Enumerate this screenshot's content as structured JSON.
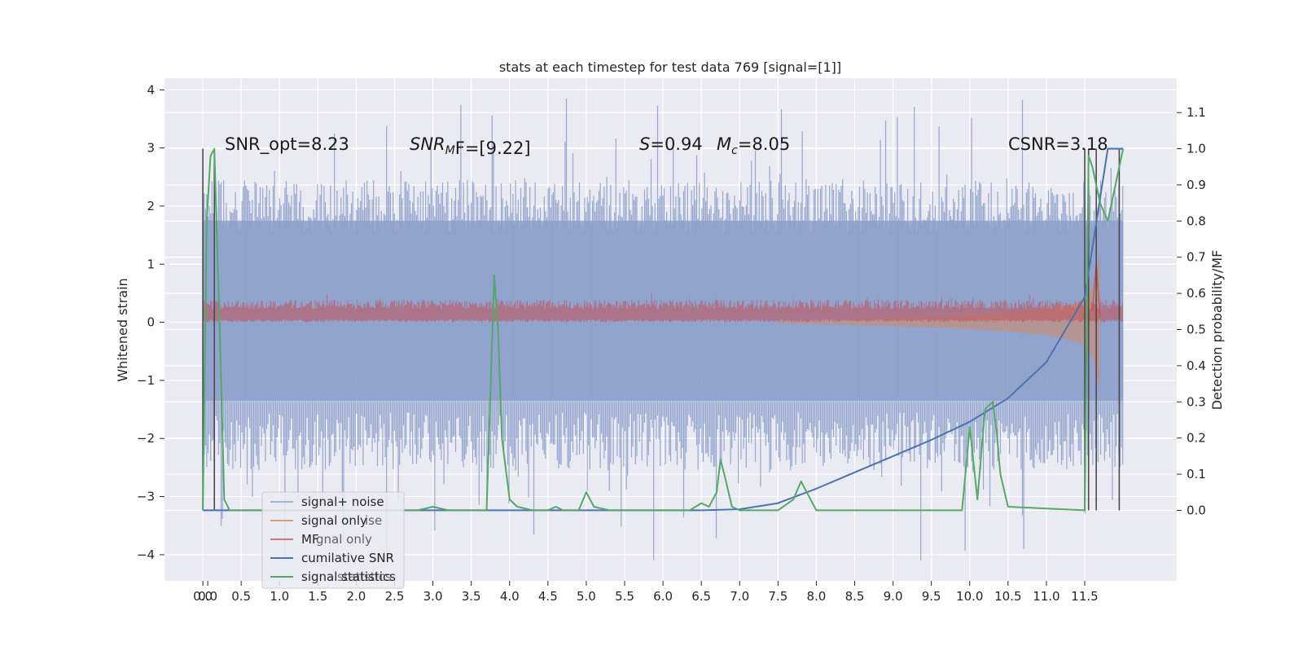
{
  "chart_data": {
    "type": "line",
    "title": "stats at each timestep for test data 769 [signal=[1]]",
    "xlabel": "",
    "ylabel_left": "Whitened strain",
    "ylabel_right": "Detection probability/MF",
    "xlim": [
      -0.5,
      12.7
    ],
    "ylim_left": [
      -4.45,
      4.2
    ],
    "ylim_right": [
      -0.195,
      1.195
    ],
    "x_ticks": [
      "0.0",
      "0.0",
      "0.5",
      "1.0",
      "1.5",
      "2.0",
      "2.5",
      "3.0",
      "3.5",
      "4.0",
      "4.5",
      "5.0",
      "5.5",
      "6.0",
      "6.5",
      "7.0",
      "7.5",
      "8.0",
      "8.5",
      "9.0",
      "9.5",
      "10.0",
      "10.5",
      "11.0",
      "11.5"
    ],
    "x_tick_values": [
      0.0,
      0.0,
      0.5,
      1.0,
      1.5,
      2.0,
      2.5,
      3.0,
      3.5,
      4.0,
      4.5,
      5.0,
      5.5,
      6.0,
      6.5,
      7.0,
      7.5,
      8.0,
      8.5,
      9.0,
      9.5,
      10.0,
      10.5,
      11.0,
      11.5
    ],
    "y_ticks_left": [
      "4",
      "3",
      "2",
      "1",
      "0",
      "−1",
      "−2",
      "−3",
      "−4"
    ],
    "y_tick_values_left": [
      4,
      3,
      2,
      1,
      0,
      -1,
      -2,
      -3,
      -4
    ],
    "y_ticks_right": [
      "1.1",
      "1.0",
      "0.9",
      "0.8",
      "0.7",
      "0.6",
      "0.5",
      "0.4",
      "0.3",
      "0.2",
      "0.1",
      "0.0"
    ],
    "y_tick_values_right": [
      1.1,
      1.0,
      0.9,
      0.8,
      0.7,
      0.6,
      0.5,
      0.4,
      0.3,
      0.2,
      0.1,
      0.0
    ],
    "grid": true,
    "legend_placement": "lower-left",
    "annotations": {
      "snr_opt": "SNR_opt=8.23",
      "snr_mf_base": "SNR",
      "snr_mf_sub": "M",
      "snr_mf_rest": "F=[9.22]",
      "s_base": "S",
      "s_rest": "=0.94",
      "mc_base": "M",
      "mc_sub": "c",
      "mc_rest": "=8.05",
      "csnr": "CSNR=3.18"
    },
    "legend": [
      {
        "label": "signal+ noise",
        "color": "#8da0cb"
      },
      {
        "label": "signal only",
        "color": "#dd8452"
      },
      {
        "label": "MF",
        "color": "#c44e52"
      },
      {
        "label": "cumilative SNR",
        "color": "#4c72b0"
      },
      {
        "label": "signal statistics",
        "color": "#55a868"
      }
    ],
    "legend_ghost": {
      "noise_tail": "ise",
      "signal_tail": "gnal only",
      "stats_tail": "statistics"
    },
    "series": [
      {
        "name": "signal+ noise",
        "axis": "left",
        "description": "dense whitened noise, roughly uniform amplitude, x 0.0 to 12.0",
        "x_range": [
          0.0,
          12.0
        ],
        "upper_band": 1.75,
        "lower_band": -1.35,
        "max_spike": 3.85,
        "min_spike": -4.1,
        "color": "#8da0cb"
      },
      {
        "name": "signal only",
        "axis": "left",
        "description": "chirp envelope growing toward merger",
        "x": [
          7.5,
          8.0,
          8.5,
          9.0,
          9.5,
          10.0,
          10.5,
          11.0,
          11.3,
          11.5,
          11.6,
          11.7
        ],
        "y": [
          0.02,
          0.03,
          0.05,
          0.07,
          0.09,
          0.12,
          0.16,
          0.22,
          0.3,
          0.4,
          0.6,
          -1.2
        ],
        "color": "#dd8452"
      },
      {
        "name": "MF",
        "axis": "left",
        "description": "matched filter output band around zero, x 0.0 to 12.0",
        "x_range": [
          0.0,
          12.0
        ],
        "upper": 0.28,
        "lower": 0.02,
        "peak": {
          "x": 11.65,
          "y": 1.0
        },
        "color": "#c44e52"
      },
      {
        "name": "cumilative SNR",
        "axis": "right",
        "x": [
          0.0,
          6.5,
          7.0,
          7.5,
          8.0,
          8.5,
          9.0,
          9.5,
          10.0,
          10.5,
          11.0,
          11.5,
          11.8,
          12.0
        ],
        "y": [
          0.0,
          0.0,
          0.003,
          0.02,
          0.06,
          0.105,
          0.15,
          0.195,
          0.245,
          0.31,
          0.41,
          0.59,
          1.0,
          1.0
        ],
        "color": "#4c72b0"
      },
      {
        "name": "signal statistics",
        "axis": "right",
        "x": [
          0.0,
          0.05,
          0.1,
          0.15,
          0.22,
          0.28,
          0.35,
          2.8,
          3.0,
          3.2,
          3.5,
          3.7,
          3.8,
          3.85,
          3.9,
          4.0,
          4.1,
          4.3,
          4.5,
          4.6,
          4.7,
          4.9,
          5.0,
          5.1,
          5.3,
          5.6,
          5.8,
          6.35,
          6.5,
          6.6,
          6.7,
          6.75,
          6.8,
          6.9,
          7.0,
          7.2,
          7.5,
          7.7,
          7.8,
          7.9,
          8.0,
          8.2,
          9.0,
          9.9,
          10.0,
          10.1,
          10.2,
          10.3,
          10.35,
          10.4,
          10.5,
          11.5,
          11.55,
          11.6,
          11.7,
          11.8,
          11.9,
          12.0
        ],
        "y": [
          0.0,
          0.8,
          0.98,
          1.0,
          0.5,
          0.03,
          0.0,
          0.0,
          0.01,
          0.0,
          0.0,
          0.0,
          0.65,
          0.5,
          0.2,
          0.03,
          0.01,
          0.0,
          0.0,
          0.01,
          0.0,
          0.0,
          0.05,
          0.01,
          0.0,
          0.0,
          0.0,
          0.0,
          0.02,
          0.01,
          0.05,
          0.14,
          0.1,
          0.01,
          0.0,
          0.0,
          0.0,
          0.03,
          0.08,
          0.04,
          0.0,
          0.0,
          0.0,
          0.0,
          0.23,
          0.03,
          0.28,
          0.3,
          0.22,
          0.1,
          0.01,
          0.0,
          0.98,
          0.95,
          0.85,
          0.8,
          0.9,
          1.0
        ],
        "color": "#55a868"
      }
    ],
    "vertical_markers": [
      {
        "x": 0.0,
        "color": "#4a4a4a"
      },
      {
        "x": 0.15,
        "color": "#4a4a4a"
      },
      {
        "x": 11.5,
        "color": "#4a4a4a"
      },
      {
        "x": 11.55,
        "color": "#4a4a4a"
      },
      {
        "x": 11.65,
        "color": "#4a4a4a"
      },
      {
        "x": 11.95,
        "color": "#4a4a4a"
      }
    ],
    "colors": {
      "plot_bg": "#eaeaf2",
      "grid": "#ffffff"
    }
  }
}
